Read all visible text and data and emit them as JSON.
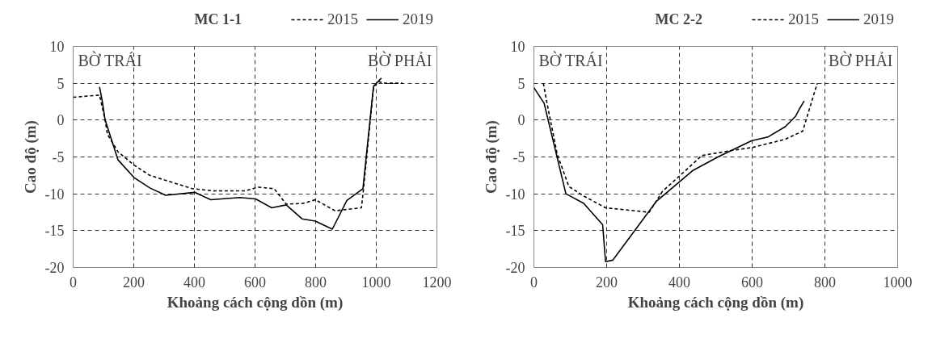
{
  "chart_data": [
    {
      "type": "line",
      "title": "MC 1-1",
      "xlabel": "Khoảng cách cộng dồn (m)",
      "ylabel": "Cao độ (m)",
      "xlim": [
        0,
        1200
      ],
      "xticks": [
        0,
        200,
        400,
        600,
        800,
        1000,
        1200
      ],
      "ylim": [
        -20,
        10
      ],
      "yticks": [
        -20,
        -15,
        -10,
        -5,
        0,
        5,
        10
      ],
      "grid": true,
      "legend": "top",
      "marker": "none",
      "annotations": [
        "BỜ TRÁI",
        "BỜ PHẢI"
      ],
      "series": [
        {
          "name": "2015",
          "color": "#000000",
          "line_style": "dashed",
          "x": [
            0,
            87,
            105,
            113,
            148,
            201,
            253,
            393,
            463,
            567,
            611,
            663,
            703,
            759,
            799,
            864,
            951,
            956,
            991,
            1008,
            1030,
            1087
          ],
          "values": [
            3.1,
            3.4,
            0.1,
            -1.9,
            -4.3,
            -6.1,
            -7.5,
            -9.3,
            -9.6,
            -9.6,
            -9.1,
            -9.3,
            -11.4,
            -11.3,
            -10.8,
            -12.3,
            -11.9,
            -10.1,
            4.5,
            5.2,
            5.0,
            5.0
          ]
        },
        {
          "name": "2019",
          "color": "#000000",
          "line_style": "solid",
          "x": [
            87,
            96,
            105,
            148,
            201,
            253,
            305,
            401,
            454,
            550,
            602,
            655,
            703,
            755,
            799,
            855,
            903,
            956,
            991,
            1017
          ],
          "values": [
            4.5,
            2.6,
            0.1,
            -5.4,
            -7.8,
            -9.2,
            -10.2,
            -9.8,
            -10.8,
            -10.5,
            -10.7,
            -11.9,
            -11.5,
            -13.4,
            -13.7,
            -14.8,
            -10.9,
            -9.3,
            4.6,
            5.7
          ]
        }
      ]
    },
    {
      "type": "line",
      "title": "MC 2-2",
      "xlabel": "Khoảng cách cộng dồn (m)",
      "ylabel": "Cao độ (m)",
      "xlim": [
        0,
        1000
      ],
      "xticks": [
        0,
        200,
        400,
        600,
        800,
        1000
      ],
      "ylim": [
        -20,
        10
      ],
      "yticks": [
        -20,
        -15,
        -10,
        -5,
        0,
        5,
        10
      ],
      "grid": true,
      "legend": "top",
      "marker": "none",
      "annotations": [
        "BỜ TRÁI",
        "BỜ PHẢI"
      ],
      "series": [
        {
          "name": "2015",
          "color": "#000000",
          "line_style": "dashed",
          "x": [
            26,
            36,
            64,
            96,
            137,
            197,
            317,
            353,
            402,
            462,
            546,
            602,
            691,
            739,
            779
          ],
          "values": [
            5.0,
            2.3,
            -4.6,
            -9.0,
            -10.3,
            -11.9,
            -12.5,
            -9.7,
            -7.5,
            -4.8,
            -4.1,
            -3.7,
            -2.6,
            -1.5,
            5.0
          ]
        },
        {
          "name": "2019",
          "color": "#000000",
          "line_style": "solid",
          "x": [
            0,
            28,
            88,
            137,
            189,
            197,
            217,
            337,
            438,
            506,
            598,
            643,
            691,
            719,
            731,
            743
          ],
          "values": [
            4.4,
            2.3,
            -10.0,
            -11.3,
            -14.2,
            -19.2,
            -19.0,
            -11.0,
            -6.8,
            -5.0,
            -2.8,
            -2.3,
            -0.9,
            0.5,
            1.6,
            2.6
          ]
        }
      ]
    }
  ]
}
